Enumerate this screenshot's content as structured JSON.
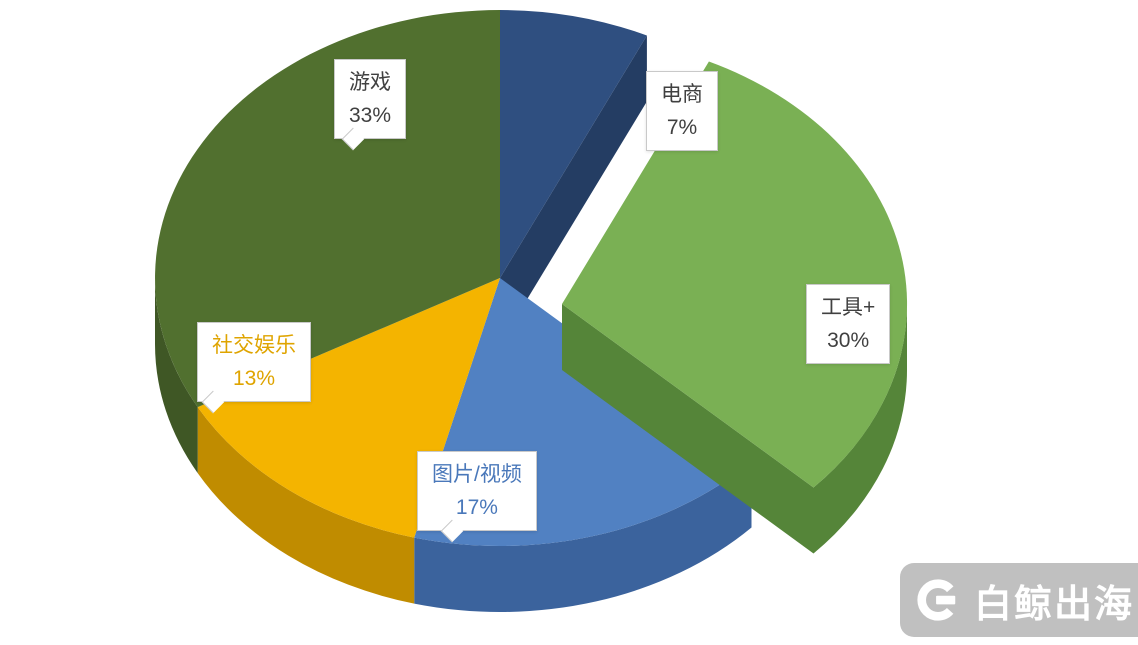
{
  "chart_data": {
    "type": "pie",
    "style": "3d-exploded-pie",
    "title": "",
    "direction": "clockwise",
    "start_angle_deg": 0,
    "legend": "none",
    "slices": [
      {
        "id": "ecommerce",
        "name": "电商",
        "value": 7,
        "pct_label": "7%",
        "color_top": "#2f4f80",
        "color_side": "#243d63",
        "label_color": "#404040",
        "exploded": false
      },
      {
        "id": "tools",
        "name": "工具+",
        "value": 30,
        "pct_label": "30%",
        "color_top": "#7ab054",
        "color_side": "#558539",
        "label_color": "#404040",
        "exploded": true
      },
      {
        "id": "photo-video",
        "name": "图片/视频",
        "value": 17,
        "pct_label": "17%",
        "color_top": "#5181c2",
        "color_side": "#3b639d",
        "label_color": "#4a78ba",
        "exploded": false
      },
      {
        "id": "social-entertainment",
        "name": "社交娱乐",
        "value": 13,
        "pct_label": "13%",
        "color_top": "#f4b400",
        "color_side": "#c08c00",
        "label_color": "#dfa400",
        "exploded": false
      },
      {
        "id": "games",
        "name": "游戏",
        "value": 33,
        "pct_label": "33%",
        "color_top": "#51702f",
        "color_side": "#3f5725",
        "label_color": "#404040",
        "exploded": false
      }
    ]
  },
  "watermark": {
    "text": "白鲸出海"
  }
}
